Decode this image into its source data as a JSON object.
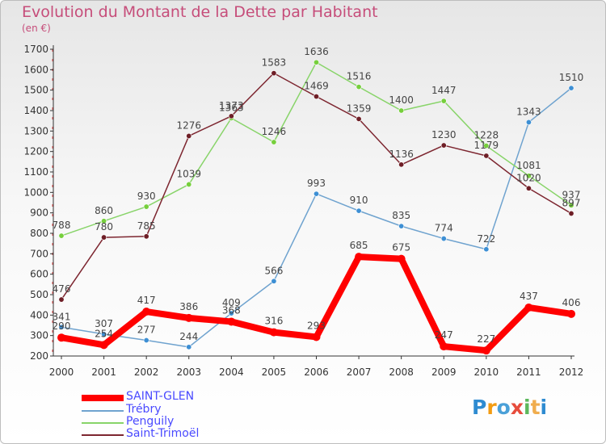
{
  "title": "Evolution du Montant de la Dette par Habitant",
  "unit": "(en €)",
  "logo": {
    "letters": [
      "P",
      "r",
      "o",
      "x",
      "i",
      "t",
      "i"
    ],
    "colors": [
      "#2e8bd1",
      "#f39c12",
      "#4aa0d8",
      "#e74c3c",
      "#5cb85c",
      "#f0ad4e",
      "#2e8bd1"
    ]
  },
  "chart_data": {
    "type": "line",
    "x": [
      "2000",
      "2001",
      "2002",
      "2003",
      "2004",
      "2005",
      "2006",
      "2007",
      "2008",
      "2009",
      "2010",
      "2011",
      "2012"
    ],
    "ylim": [
      200,
      1700
    ],
    "yticks": [
      200,
      300,
      400,
      500,
      600,
      700,
      800,
      900,
      1000,
      1100,
      1200,
      1300,
      1400,
      1500,
      1600,
      1700
    ],
    "grid": false,
    "legend_position": "bottom-left",
    "series": [
      {
        "name": "Trébry",
        "color": "#6fa3cf",
        "dot": "#3d8fd4",
        "width": 1.5,
        "values": [
          341,
          307,
          277,
          244,
          409,
          566,
          993,
          910,
          835,
          774,
          722,
          1343,
          1510
        ]
      },
      {
        "name": "Penguily",
        "color": "#88d469",
        "dot": "#76cf3c",
        "width": 1.5,
        "values": [
          788,
          860,
          930,
          1039,
          1363,
          1246,
          1636,
          1516,
          1400,
          1447,
          1228,
          1081,
          937
        ]
      },
      {
        "name": "Saint-Trimoël",
        "color": "#7d2630",
        "dot": "#6e1e26",
        "width": 1.5,
        "values": [
          476,
          780,
          785,
          1276,
          1373,
          1583,
          1469,
          1359,
          1136,
          1230,
          1179,
          1020,
          897
        ]
      },
      {
        "name": "SAINT-GLEN",
        "color": "#ff0000",
        "dot": "#ff0000",
        "width": 8,
        "values": [
          290,
          254,
          417,
          386,
          368,
          316,
          293,
          685,
          675,
          247,
          227,
          437,
          406
        ]
      }
    ],
    "legend": [
      {
        "name": "SAINT-GLEN",
        "color": "#ff0000",
        "label_color": "#4a4aff",
        "thickness": 8
      },
      {
        "name": "Trébry",
        "color": "#6fa3cf",
        "label_color": "#4a4aff",
        "thickness": 2
      },
      {
        "name": "Penguily",
        "color": "#88d469",
        "label_color": "#4a4aff",
        "thickness": 2
      },
      {
        "name": "Saint-Trimoël",
        "color": "#7d2630",
        "label_color": "#4a4aff",
        "thickness": 2
      }
    ]
  }
}
